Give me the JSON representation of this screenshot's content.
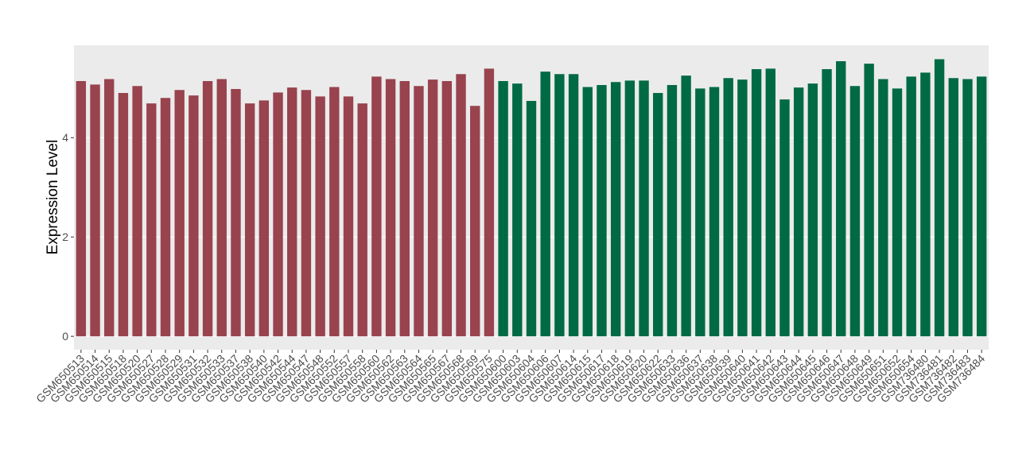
{
  "chart_data": {
    "type": "bar",
    "y_label": "Expression Level",
    "categories": [
      "GSM650513",
      "GSM650514",
      "GSM650515",
      "GSM650518",
      "GSM650520",
      "GSM650527",
      "GSM650528",
      "GSM650529",
      "GSM650531",
      "GSM650532",
      "GSM650533",
      "GSM650537",
      "GSM650538",
      "GSM650540",
      "GSM650542",
      "GSM650544",
      "GSM650547",
      "GSM650548",
      "GSM650552",
      "GSM650557",
      "GSM650558",
      "GSM650560",
      "GSM650562",
      "GSM650563",
      "GSM650564",
      "GSM650565",
      "GSM650567",
      "GSM650568",
      "GSM650569",
      "GSM650575",
      "GSM650600",
      "GSM650603",
      "GSM650604",
      "GSM650606",
      "GSM650607",
      "GSM650614",
      "GSM650615",
      "GSM650617",
      "GSM650618",
      "GSM650619",
      "GSM650620",
      "GSM650622",
      "GSM650633",
      "GSM650636",
      "GSM650637",
      "GSM650638",
      "GSM650639",
      "GSM650640",
      "GSM650641",
      "GSM650642",
      "GSM650643",
      "GSM650644",
      "GSM650645",
      "GSM650646",
      "GSM650647",
      "GSM650648",
      "GSM650649",
      "GSM650651",
      "GSM650652",
      "GSM650654",
      "GSM736480",
      "GSM736481",
      "GSM736482",
      "GSM736483",
      "GSM736484"
    ],
    "values": [
      5.14,
      5.07,
      5.18,
      4.9,
      5.04,
      4.69,
      4.8,
      4.96,
      4.85,
      5.14,
      5.18,
      4.98,
      4.69,
      4.75,
      4.91,
      5.01,
      4.96,
      4.83,
      5.02,
      4.83,
      4.69,
      5.23,
      5.18,
      5.14,
      5.04,
      5.17,
      5.14,
      5.28,
      4.64,
      5.39,
      5.14,
      5.09,
      4.74,
      5.33,
      5.28,
      5.28,
      5.02,
      5.06,
      5.12,
      5.15,
      5.15,
      4.9,
      5.06,
      5.25,
      4.99,
      5.02,
      5.2,
      5.17,
      5.38,
      5.39,
      4.77,
      5.01,
      5.09,
      5.38,
      5.54,
      5.04,
      5.49,
      5.18,
      4.99,
      5.23,
      5.31,
      5.58,
      5.2,
      5.18,
      5.23
    ],
    "colors": [
      "#98434e",
      "#98434e",
      "#98434e",
      "#98434e",
      "#98434e",
      "#98434e",
      "#98434e",
      "#98434e",
      "#98434e",
      "#98434e",
      "#98434e",
      "#98434e",
      "#98434e",
      "#98434e",
      "#98434e",
      "#98434e",
      "#98434e",
      "#98434e",
      "#98434e",
      "#98434e",
      "#98434e",
      "#98434e",
      "#98434e",
      "#98434e",
      "#98434e",
      "#98434e",
      "#98434e",
      "#98434e",
      "#98434e",
      "#98434e",
      "#006a45",
      "#006a45",
      "#006a45",
      "#006a45",
      "#006a45",
      "#006a45",
      "#006a45",
      "#006a45",
      "#006a45",
      "#006a45",
      "#006a45",
      "#006a45",
      "#006a45",
      "#006a45",
      "#006a45",
      "#006a45",
      "#006a45",
      "#006a45",
      "#006a45",
      "#006a45",
      "#006a45",
      "#006a45",
      "#006a45",
      "#006a45",
      "#006a45",
      "#006a45",
      "#006a45",
      "#006a45",
      "#006a45",
      "#006a45",
      "#006a45",
      "#006a45",
      "#006a45",
      "#006a45",
      "#006a45"
    ],
    "ylim": [
      -0.27,
      5.86
    ],
    "yticks": [
      0,
      2,
      4
    ],
    "grid": true
  }
}
